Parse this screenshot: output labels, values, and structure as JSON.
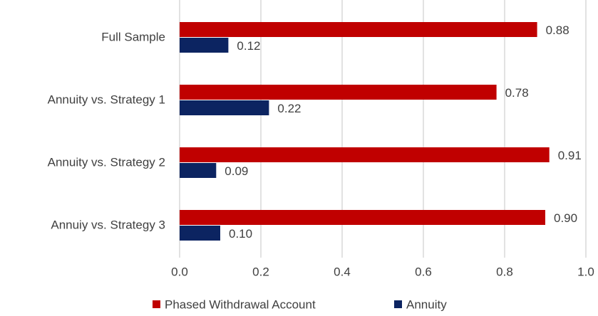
{
  "chart_data": {
    "type": "hbar",
    "categories": [
      "Full Sample",
      "Annuity vs. Strategy 1",
      "Annuity vs. Strategy 2",
      "Annuiy vs. Strategy 3"
    ],
    "series": [
      {
        "name": "Phased Withdrawal Account",
        "color": "#c00000",
        "values": [
          0.88,
          0.78,
          0.91,
          0.9
        ],
        "value_labels": [
          "0.88",
          "0.78",
          "0.91",
          "0.90"
        ]
      },
      {
        "name": "Annuity",
        "color": "#0c2461",
        "values": [
          0.12,
          0.22,
          0.09,
          0.1
        ],
        "value_labels": [
          "0.12",
          "0.22",
          "0.09",
          "0.10"
        ]
      }
    ],
    "xlim": [
      0,
      1
    ],
    "xticks": [
      {
        "value": 0,
        "label": "0.0"
      },
      0.2,
      0.4,
      0.6,
      0.8,
      {
        "value": 1,
        "label": "1.0"
      }
    ],
    "grid": true,
    "legend": "bottom"
  }
}
